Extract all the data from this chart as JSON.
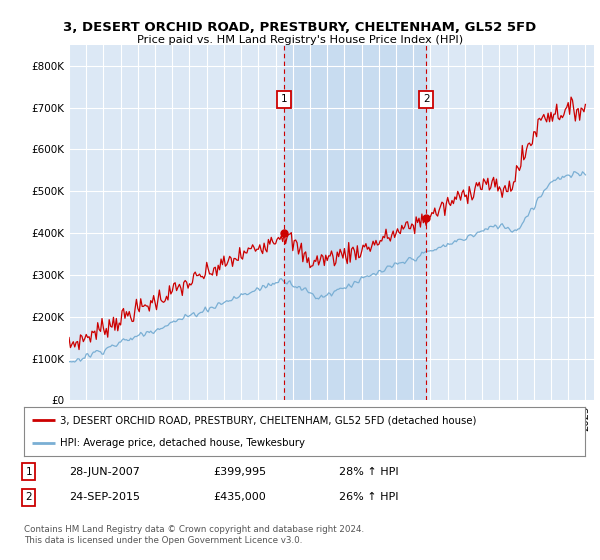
{
  "title": "3, DESERT ORCHID ROAD, PRESTBURY, CHELTENHAM, GL52 5FD",
  "subtitle": "Price paid vs. HM Land Registry's House Price Index (HPI)",
  "ylim": [
    0,
    850000
  ],
  "yticks": [
    0,
    100000,
    200000,
    300000,
    400000,
    500000,
    600000,
    700000,
    800000
  ],
  "ytick_labels": [
    "£0",
    "£100K",
    "£200K",
    "£300K",
    "£400K",
    "£500K",
    "£600K",
    "£700K",
    "£800K"
  ],
  "background_color": "#ffffff",
  "plot_bg_color": "#dce8f5",
  "shade_color": "#c8dcf0",
  "grid_color": "#ffffff",
  "red_line_color": "#cc0000",
  "blue_line_color": "#7aafd4",
  "marker1_year": 2007.5,
  "marker2_year": 2015.75,
  "legend_line1": "3, DESERT ORCHID ROAD, PRESTBURY, CHELTENHAM, GL52 5FD (detached house)",
  "legend_line2": "HPI: Average price, detached house, Tewkesbury",
  "annotation1_date": "28-JUN-2007",
  "annotation1_price": "£399,995",
  "annotation1_hpi": "28% ↑ HPI",
  "annotation2_date": "24-SEP-2015",
  "annotation2_price": "£435,000",
  "annotation2_hpi": "26% ↑ HPI",
  "footer": "Contains HM Land Registry data © Crown copyright and database right 2024.\nThis data is licensed under the Open Government Licence v3.0.",
  "x_start_year": 1995,
  "x_end_year": 2025
}
